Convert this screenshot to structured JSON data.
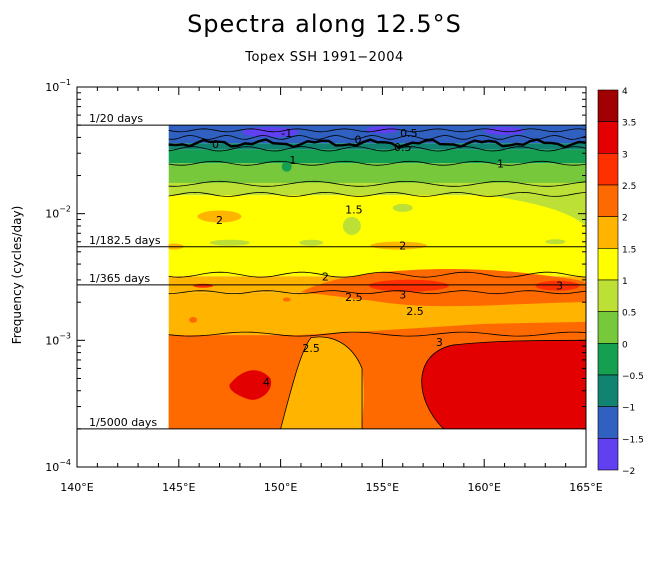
{
  "chart_data": {
    "type": "heatmap",
    "title": "Spectra along 12.5°S",
    "subtitle": "Topex SSH 1991−2004",
    "ylabel": "Frequency (cycles/day)",
    "xlabel": "",
    "x_ticks": [
      "140°E",
      "145°E",
      "150°E",
      "155°E",
      "160°E",
      "165°E"
    ],
    "x_tick_values": [
      140,
      145,
      150,
      155,
      160,
      165
    ],
    "xlim": [
      140,
      165
    ],
    "y_scale": "log",
    "ylim": [
      0.0001,
      0.1
    ],
    "y_ticks": [
      {
        "value": 0.1,
        "base": "10",
        "exp": "−1"
      },
      {
        "value": 0.01,
        "base": "10",
        "exp": "−2"
      },
      {
        "value": 0.001,
        "base": "10",
        "exp": "−3"
      },
      {
        "value": 0.0001,
        "base": "10",
        "exp": "−4"
      }
    ],
    "reference_lines": [
      {
        "label": "1/20 days",
        "frequency": 0.05
      },
      {
        "label": "1/182.5 days",
        "frequency": 0.00548
      },
      {
        "label": "1/365 days",
        "frequency": 0.00274
      },
      {
        "label": "1/5000 days",
        "frequency": 0.0002
      }
    ],
    "data_extent": {
      "x": [
        144.5,
        165
      ],
      "y": [
        0.0002,
        0.05
      ]
    },
    "colorbar": {
      "levels": [
        "4",
        "3.5",
        "3",
        "2.5",
        "2",
        "1.5",
        "1",
        "0.5",
        "0",
        "−0.5",
        "−1",
        "−1.5",
        "−2"
      ],
      "colors": [
        "#a10000",
        "#e20000",
        "#ff3000",
        "#ff6a00",
        "#ffb400",
        "#ffff00",
        "#bce036",
        "#78c83c",
        "#14a050",
        "#108470",
        "#3060c0",
        "#6040f0",
        "#e000f0"
      ]
    },
    "fill_bands": [
      {
        "level": "-1",
        "color": "#3060c0",
        "y0": 0.05,
        "y1": 0.036
      },
      {
        "level": "0",
        "color": "#108470",
        "y0": 0.036,
        "y1": 0.032
      },
      {
        "level": "0.5",
        "color": "#14a050",
        "y0": 0.032,
        "y1": 0.025
      },
      {
        "level": "1",
        "color": "#78c83c",
        "y0": 0.025,
        "y1": 0.017
      },
      {
        "level": "1.5",
        "color": "#bce036",
        "y0": 0.017,
        "y1": 0.014
      },
      {
        "level": "2",
        "color": "#ffff00",
        "y0": 0.014,
        "y1": 0.0032
      },
      {
        "level": "2.5",
        "color": "#ffb400",
        "y0": 0.0032,
        "y1": 0.0024
      },
      {
        "level": "2.5b",
        "color": "#ffb400",
        "y0": 0.0024,
        "y1": 0.0011
      },
      {
        "level": "3",
        "color": "#ff6a00",
        "y0": 0.0011,
        "y1": 0.0002
      }
    ],
    "contour_labels": [
      {
        "text": "-1",
        "x": 150.3,
        "y": 0.0435
      },
      {
        "text": "0.5",
        "x": 156.3,
        "y": 0.0435
      },
      {
        "text": "0",
        "x": 153.8,
        "y": 0.0385
      },
      {
        "text": "0",
        "x": 146.8,
        "y": 0.0355
      },
      {
        "text": "0.5",
        "x": 156.0,
        "y": 0.0335
      },
      {
        "text": "1",
        "x": 150.6,
        "y": 0.0265
      },
      {
        "text": "1",
        "x": 160.8,
        "y": 0.025
      },
      {
        "text": "1.5",
        "x": 153.6,
        "y": 0.0108
      },
      {
        "text": "2",
        "x": 147.0,
        "y": 0.0089
      },
      {
        "text": "2",
        "x": 156.0,
        "y": 0.0056
      },
      {
        "text": "2",
        "x": 152.2,
        "y": 0.0032
      },
      {
        "text": "2.5",
        "x": 153.6,
        "y": 0.0022
      },
      {
        "text": "3",
        "x": 156.0,
        "y": 0.0023
      },
      {
        "text": "2.5",
        "x": 156.6,
        "y": 0.0017
      },
      {
        "text": "3",
        "x": 163.7,
        "y": 0.0027
      },
      {
        "text": "3",
        "x": 157.8,
        "y": 0.00097
      },
      {
        "text": "2.5",
        "x": 151.5,
        "y": 0.00087
      },
      {
        "text": "4",
        "x": 149.3,
        "y": 0.00047
      }
    ]
  }
}
